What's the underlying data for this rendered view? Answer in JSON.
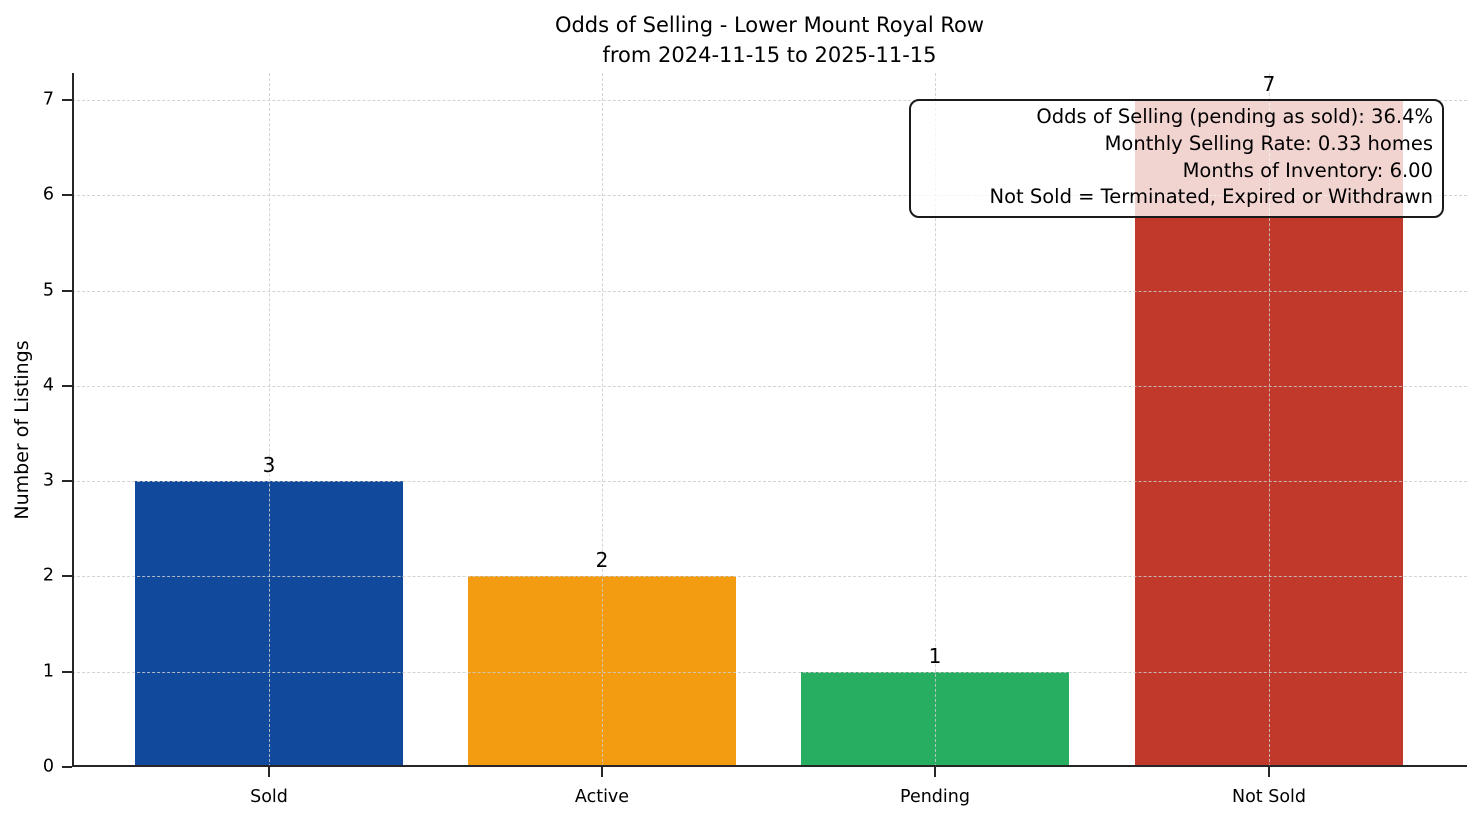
{
  "title": {
    "line1": "Odds of Selling - Lower Mount Royal Row",
    "line2": "from 2024-11-15 to 2025-11-15"
  },
  "chart_data": {
    "type": "bar",
    "title": "Odds of Selling - Lower Mount Royal Row\nfrom 2024-11-15 to 2025-11-15",
    "categories": [
      "Sold",
      "Active",
      "Pending",
      "Not Sold"
    ],
    "values": [
      3,
      2,
      1,
      7
    ],
    "bar_colors": [
      "#11499c",
      "#f39c12",
      "#27ae60",
      "#c0392b"
    ],
    "value_labels": [
      "3",
      "2",
      "1",
      "7"
    ],
    "xlabel": "",
    "ylabel": "Number of Listings",
    "yticks": [
      0,
      1,
      2,
      3,
      4,
      5,
      6,
      7
    ],
    "ylim": [
      0,
      7.28
    ],
    "grid": "dashed light-gray horizontal and vertical gridlines drawn over bars",
    "legend": "none",
    "axis_color": "#262626",
    "annotation": {
      "position": "top-right",
      "lines": [
        "Odds of Selling (pending as sold): 36.4%",
        "Monthly Selling Rate: 0.33 homes",
        "Months of Inventory: 6.00",
        "Not Sold = Terminated, Expired or Withdrawn"
      ],
      "background": "rgba(255,255,255,0.78)",
      "border_color": "#1a1a1a"
    }
  }
}
